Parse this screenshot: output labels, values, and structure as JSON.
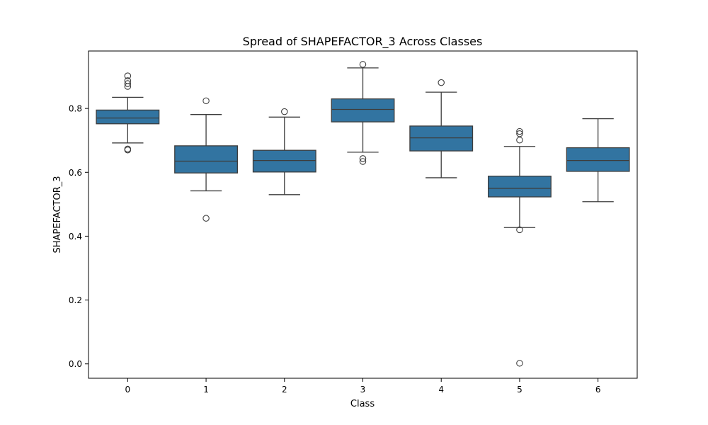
{
  "chart_data": {
    "type": "box",
    "title": "Spread of SHAPEFACTOR_3 Across Classes",
    "xlabel": "Class",
    "ylabel": "SHAPEFACTOR_3",
    "ylim": [
      -0.045,
      0.98
    ],
    "yticks": [
      0.0,
      0.2,
      0.4,
      0.6,
      0.8
    ],
    "ytick_labels": [
      "0.0",
      "0.2",
      "0.4",
      "0.6",
      "0.8"
    ],
    "grid": false,
    "legend": "none",
    "box_color": "#3274a1",
    "line_color": "#3d3d3d",
    "categories": [
      "0",
      "1",
      "2",
      "3",
      "4",
      "5",
      "6"
    ],
    "boxes": [
      {
        "category": "0",
        "whisker_low": 0.692,
        "q1": 0.752,
        "median": 0.77,
        "q3": 0.795,
        "whisker_high": 0.835,
        "outliers": [
          0.902,
          0.887,
          0.878,
          0.869,
          0.673,
          0.67
        ]
      },
      {
        "category": "1",
        "whisker_low": 0.542,
        "q1": 0.598,
        "median": 0.635,
        "q3": 0.683,
        "whisker_high": 0.781,
        "outliers": [
          0.824,
          0.456
        ]
      },
      {
        "category": "2",
        "whisker_low": 0.53,
        "q1": 0.601,
        "median": 0.637,
        "q3": 0.669,
        "whisker_high": 0.773,
        "outliers": [
          0.79
        ]
      },
      {
        "category": "3",
        "whisker_low": 0.663,
        "q1": 0.758,
        "median": 0.797,
        "q3": 0.83,
        "whisker_high": 0.927,
        "outliers": [
          0.938,
          0.643,
          0.634
        ]
      },
      {
        "category": "4",
        "whisker_low": 0.583,
        "q1": 0.667,
        "median": 0.708,
        "q3": 0.745,
        "whisker_high": 0.851,
        "outliers": [
          0.881
        ]
      },
      {
        "category": "5",
        "whisker_low": 0.427,
        "q1": 0.523,
        "median": 0.55,
        "q3": 0.588,
        "whisker_high": 0.681,
        "outliers": [
          0.728,
          0.721,
          0.701,
          0.42,
          0.002
        ]
      },
      {
        "category": "6",
        "whisker_low": 0.508,
        "q1": 0.603,
        "median": 0.637,
        "q3": 0.677,
        "whisker_high": 0.768,
        "outliers": []
      }
    ]
  }
}
